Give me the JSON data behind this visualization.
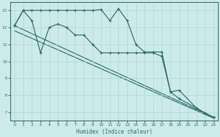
{
  "xlabel": "Humidex (Indice chaleur)",
  "color": "#2e6b6b",
  "bg_color": "#cdeaea",
  "grid_color": "#aed4d4",
  "xlim": [
    -0.5,
    23.5
  ],
  "ylim": [
    6.5,
    13.5
  ],
  "yticks": [
    7,
    8,
    9,
    10,
    11,
    12,
    13
  ],
  "xticks": [
    0,
    1,
    2,
    3,
    4,
    5,
    6,
    7,
    8,
    9,
    10,
    11,
    12,
    13,
    14,
    15,
    16,
    17,
    18,
    19,
    20,
    21,
    22,
    23
  ],
  "line1_x": [
    0,
    1,
    2,
    3,
    4,
    5,
    6,
    7,
    8,
    9,
    10,
    11,
    12,
    13,
    14,
    15,
    16,
    17,
    18,
    19,
    21,
    22,
    23
  ],
  "line1_y": [
    12.1,
    13.0,
    13.0,
    13.0,
    13.0,
    13.0,
    13.0,
    13.0,
    13.0,
    13.0,
    13.05,
    12.4,
    13.1,
    12.4,
    11.0,
    10.55,
    10.55,
    10.55,
    8.2,
    8.3,
    7.25,
    6.95,
    6.7
  ],
  "line2_x": [
    0,
    1,
    2,
    3,
    4,
    5,
    6,
    7,
    8,
    9,
    10,
    11,
    12,
    13,
    14,
    15,
    16,
    17,
    18,
    19,
    21,
    22,
    23
  ],
  "line2_y": [
    12.1,
    13.0,
    12.4,
    10.5,
    12.0,
    12.2,
    12.0,
    11.55,
    11.55,
    11.0,
    10.5,
    10.5,
    10.5,
    10.5,
    10.5,
    10.5,
    10.5,
    10.3,
    8.2,
    7.8,
    7.25,
    6.95,
    6.7
  ],
  "trend1_x": [
    0,
    23
  ],
  "trend1_y": [
    12.1,
    6.7
  ],
  "trend2_x": [
    0,
    23
  ],
  "trend2_y": [
    11.8,
    6.65
  ]
}
